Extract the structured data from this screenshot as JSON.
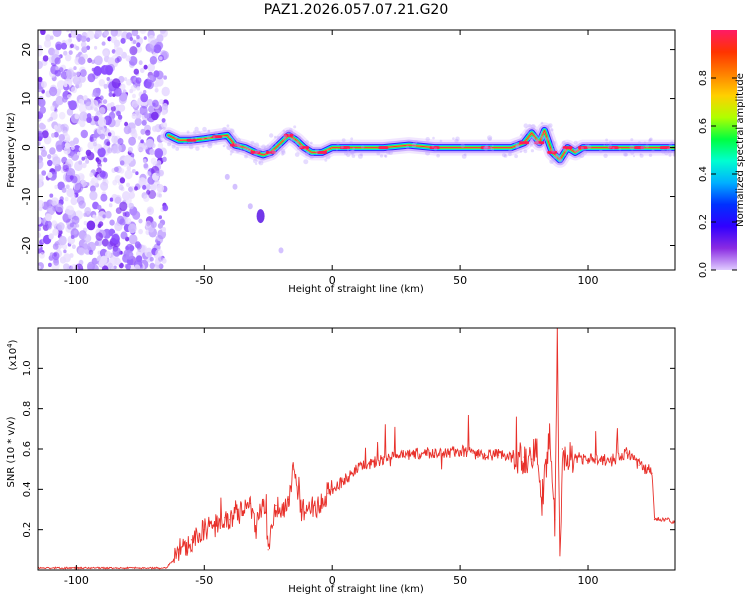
{
  "chart_data": [
    {
      "type": "heatmap",
      "title": "PAZ1.2026.057.07.21.G20",
      "xlabel": "Height of straight line (km)",
      "ylabel": "Frequency (Hz)",
      "xlim": [
        -115,
        134
      ],
      "ylim": [
        -25,
        24
      ],
      "xticks": [
        -100,
        -50,
        0,
        50,
        100
      ],
      "yticks": [
        -20,
        -10,
        0,
        10,
        20
      ],
      "colorbar": {
        "label": "Normalized spectral amplitude",
        "range": [
          0.0,
          1.0
        ],
        "ticks": [
          "0.0",
          "0.2",
          "0.4",
          "0.6",
          "0.8"
        ],
        "colormap": [
          "#ff1a66",
          "#ff3300",
          "#ff8000",
          "#ffd000",
          "#b0ff00",
          "#00ff40",
          "#00ffd0",
          "#00b0ff",
          "#0030ff",
          "#3000ff",
          "#8a2be2",
          "#e0ccff"
        ]
      },
      "noise_region_x": [
        -115,
        -65
      ],
      "ridge_points": [
        [
          -64,
          2.5
        ],
        [
          -60,
          1.5
        ],
        [
          -55,
          1.5
        ],
        [
          -50,
          1.8
        ],
        [
          -45,
          2.2
        ],
        [
          -41,
          2.5
        ],
        [
          -38,
          0.5
        ],
        [
          -34,
          0
        ],
        [
          -30,
          -1
        ],
        [
          -27,
          -1.5
        ],
        [
          -24,
          -1
        ],
        [
          -21,
          0.5
        ],
        [
          -17,
          2.5
        ],
        [
          -14,
          1.5
        ],
        [
          -11,
          0
        ],
        [
          -8,
          -1
        ],
        [
          -4,
          -1
        ],
        [
          0,
          0
        ],
        [
          5,
          0
        ],
        [
          10,
          0
        ],
        [
          20,
          0
        ],
        [
          30,
          0.5
        ],
        [
          40,
          0
        ],
        [
          50,
          0
        ],
        [
          60,
          0
        ],
        [
          70,
          0
        ],
        [
          75,
          1
        ],
        [
          78,
          3
        ],
        [
          81,
          1
        ],
        [
          83,
          3.5
        ],
        [
          86,
          -1
        ],
        [
          89,
          -2.5
        ],
        [
          92,
          0
        ],
        [
          95,
          -1
        ],
        [
          98,
          0
        ],
        [
          105,
          0
        ],
        [
          110,
          0
        ],
        [
          115,
          0
        ],
        [
          120,
          0
        ],
        [
          125,
          0
        ],
        [
          130,
          0
        ],
        [
          134,
          0
        ]
      ],
      "secondary_trace": [
        [
          -41,
          -6
        ],
        [
          -38,
          -8
        ],
        [
          -32,
          -12
        ],
        [
          -28,
          -14
        ],
        [
          -20,
          -21
        ]
      ]
    },
    {
      "type": "line",
      "xlabel": "Height of straight line (km)",
      "ylabel": "SNR (10 * v/v)",
      "yscale_label": "(x10",
      "yscale_exp": "4",
      "xlim": [
        -115,
        134
      ],
      "ylim": [
        0,
        1.2
      ],
      "xticks": [
        -100,
        -50,
        0,
        50,
        100
      ],
      "yticks": [
        0.2,
        0.4,
        0.6,
        0.8,
        1.0
      ],
      "ytick_labels": [
        "0.2",
        "0.4",
        "0.6",
        "0.8",
        "1.0"
      ],
      "series": [
        {
          "name": "SNR",
          "color": "#e8302a",
          "x": [
            -115,
            -100,
            -80,
            -65,
            -62,
            -60,
            -57,
            -55,
            -52,
            -50,
            -47,
            -45,
            -42,
            -40,
            -37,
            -35,
            -32,
            -30,
            -27,
            -25,
            -22,
            -20,
            -17,
            -15,
            -12,
            -10,
            -7,
            -5,
            -2,
            0,
            5,
            10,
            15,
            20,
            25,
            30,
            35,
            40,
            45,
            50,
            55,
            60,
            65,
            70,
            75,
            78,
            80,
            82,
            85,
            87,
            88,
            89,
            90,
            92,
            95,
            98,
            100,
            103,
            105,
            108,
            110,
            113,
            115,
            118,
            120,
            122,
            124,
            125,
            126,
            130,
            134
          ],
          "values": [
            0.01,
            0.01,
            0.01,
            0.01,
            0.05,
            0.1,
            0.12,
            0.15,
            0.17,
            0.2,
            0.22,
            0.22,
            0.26,
            0.25,
            0.3,
            0.27,
            0.33,
            0.2,
            0.35,
            0.1,
            0.32,
            0.28,
            0.35,
            0.5,
            0.3,
            0.3,
            0.32,
            0.3,
            0.38,
            0.4,
            0.45,
            0.5,
            0.53,
            0.55,
            0.56,
            0.57,
            0.58,
            0.58,
            0.58,
            0.59,
            0.58,
            0.57,
            0.57,
            0.56,
            0.56,
            0.55,
            0.6,
            0.35,
            0.65,
            0.25,
            1.2,
            0.0,
            0.6,
            0.55,
            0.56,
            0.55,
            0.55,
            0.55,
            0.54,
            0.55,
            0.55,
            0.56,
            0.58,
            0.55,
            0.52,
            0.5,
            0.5,
            0.48,
            0.25,
            0.25,
            0.24
          ]
        }
      ]
    }
  ]
}
